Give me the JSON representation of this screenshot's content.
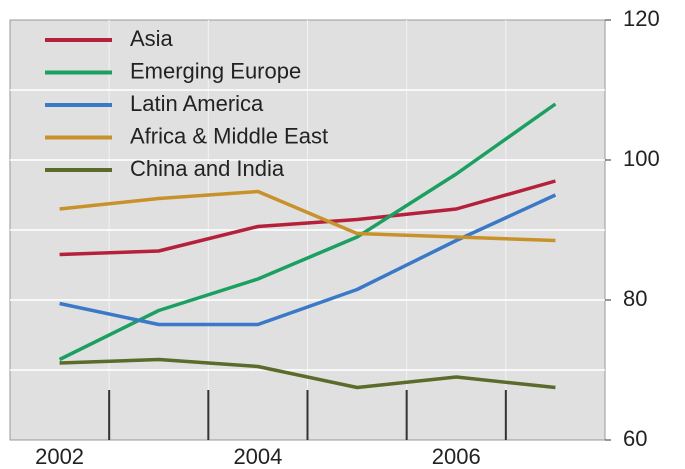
{
  "chart_data": {
    "type": "line",
    "categories": [
      "2002",
      null,
      "2004",
      null,
      "2006",
      null
    ],
    "series": [
      {
        "name": "Asia",
        "color": "#b5203a",
        "values": [
          86.5,
          87,
          90.5,
          91.5,
          93,
          97
        ]
      },
      {
        "name": "Emerging Europe",
        "color": "#1aa060",
        "values": [
          71.5,
          78.5,
          83,
          89,
          98,
          108
        ]
      },
      {
        "name": "Latin America",
        "color": "#3a78c8",
        "values": [
          79.5,
          76.5,
          76.5,
          81.5,
          88.5,
          95
        ]
      },
      {
        "name": "Africa & Middle East",
        "color": "#c8922a",
        "values": [
          93,
          94.5,
          95.5,
          89.5,
          89,
          88.5
        ]
      },
      {
        "name": "China and India",
        "color": "#5a6b2a",
        "values": [
          71,
          71.5,
          70.5,
          67.5,
          69,
          67.5
        ]
      }
    ],
    "ylim": [
      60,
      120
    ],
    "yticks": [
      60,
      80,
      100,
      120
    ],
    "ygrid": [
      70,
      80,
      90,
      100,
      110
    ],
    "y_axis_side": "right",
    "legend": "top-left"
  }
}
